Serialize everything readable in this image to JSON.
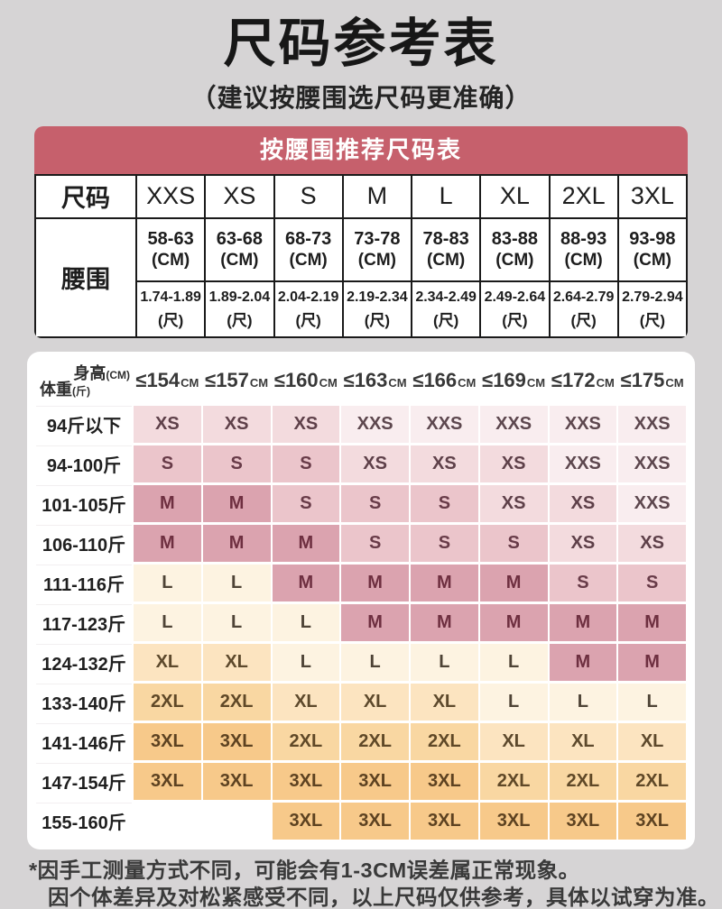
{
  "page": {
    "title": "尺码参考表",
    "subtitle": "（建议按腰围选尺码更准确）",
    "footnote_line1": "*因手工测量方式不同，可能会有1-3CM误差属正常现象。",
    "footnote_line2": "因个体差异及对松紧感受不同，以上尺码仅供参考，具体以试穿为准。"
  },
  "waist_table": {
    "header": "按腰围推荐尺码表",
    "row_label_size": "尺码",
    "row_label_waist": "腰围",
    "sizes": [
      "XXS",
      "XS",
      "S",
      "M",
      "L",
      "XL",
      "2XL",
      "3XL"
    ],
    "cm_ranges": [
      "58-63",
      "63-68",
      "68-73",
      "73-78",
      "78-83",
      "83-88",
      "88-93",
      "93-98"
    ],
    "cm_unit": "(CM)",
    "chi_ranges": [
      "1.74-1.89",
      "1.89-2.04",
      "2.04-2.19",
      "2.19-2.34",
      "2.34-2.49",
      "2.49-2.64",
      "2.64-2.79",
      "2.79-2.94"
    ],
    "chi_unit": "(尺)"
  },
  "matrix_table": {
    "corner_top": {
      "label": "身高",
      "unit": "(CM)"
    },
    "corner_bottom": {
      "label": "体重",
      "unit": "(斤)"
    },
    "height_values": [
      "≤154",
      "≤157",
      "≤160",
      "≤163",
      "≤166",
      "≤169",
      "≤172",
      "≤175"
    ],
    "height_unit": "CM",
    "rows": [
      {
        "weight": "94斤以下",
        "cells": [
          "XS",
          "XS",
          "XS",
          "XXS",
          "XXS",
          "XXS",
          "XXS",
          "XXS"
        ]
      },
      {
        "weight": "94-100斤",
        "cells": [
          "S",
          "S",
          "S",
          "XS",
          "XS",
          "XS",
          "XXS",
          "XXS"
        ]
      },
      {
        "weight": "101-105斤",
        "cells": [
          "M",
          "M",
          "S",
          "S",
          "S",
          "XS",
          "XS",
          "XXS"
        ]
      },
      {
        "weight": "106-110斤",
        "cells": [
          "M",
          "M",
          "M",
          "S",
          "S",
          "S",
          "XS",
          "XS"
        ]
      },
      {
        "weight": "111-116斤",
        "cells": [
          "L",
          "L",
          "M",
          "M",
          "M",
          "M",
          "S",
          "S"
        ]
      },
      {
        "weight": "117-123斤",
        "cells": [
          "L",
          "L",
          "L",
          "M",
          "M",
          "M",
          "M",
          "M"
        ]
      },
      {
        "weight": "124-132斤",
        "cells": [
          "XL",
          "XL",
          "L",
          "L",
          "L",
          "L",
          "M",
          "M"
        ]
      },
      {
        "weight": "133-140斤",
        "cells": [
          "2XL",
          "2XL",
          "XL",
          "XL",
          "XL",
          "L",
          "L",
          "L"
        ]
      },
      {
        "weight": "141-146斤",
        "cells": [
          "3XL",
          "3XL",
          "2XL",
          "2XL",
          "2XL",
          "XL",
          "XL",
          "XL"
        ]
      },
      {
        "weight": "147-154斤",
        "cells": [
          "3XL",
          "3XL",
          "3XL",
          "3XL",
          "3XL",
          "2XL",
          "2XL",
          "2XL"
        ]
      },
      {
        "weight": "155-160斤",
        "cells": [
          "",
          "",
          "3XL",
          "3XL",
          "3XL",
          "3XL",
          "3XL",
          "3XL"
        ]
      }
    ],
    "size_styles": {
      "XXS": {
        "bg": "#f9edef",
        "fg": "#5d474e"
      },
      "XS": {
        "bg": "#f3dbde",
        "fg": "#5e4049"
      },
      "S": {
        "bg": "#ebc5cb",
        "fg": "#683b48"
      },
      "M": {
        "bg": "#dba3af",
        "fg": "#6e2f40"
      },
      "L": {
        "bg": "#fdf3e1",
        "fg": "#4e4336"
      },
      "XL": {
        "bg": "#fce4c0",
        "fg": "#5d492c"
      },
      "2XL": {
        "bg": "#f9d7a2",
        "fg": "#5f4827"
      },
      "3XL": {
        "bg": "#f7c98a",
        "fg": "#5d4221"
      },
      "": {
        "bg": "#ffffff",
        "fg": "#000000"
      }
    }
  },
  "colors": {
    "header_red": "#c6606c",
    "page_bg": "#d6d4d5"
  }
}
